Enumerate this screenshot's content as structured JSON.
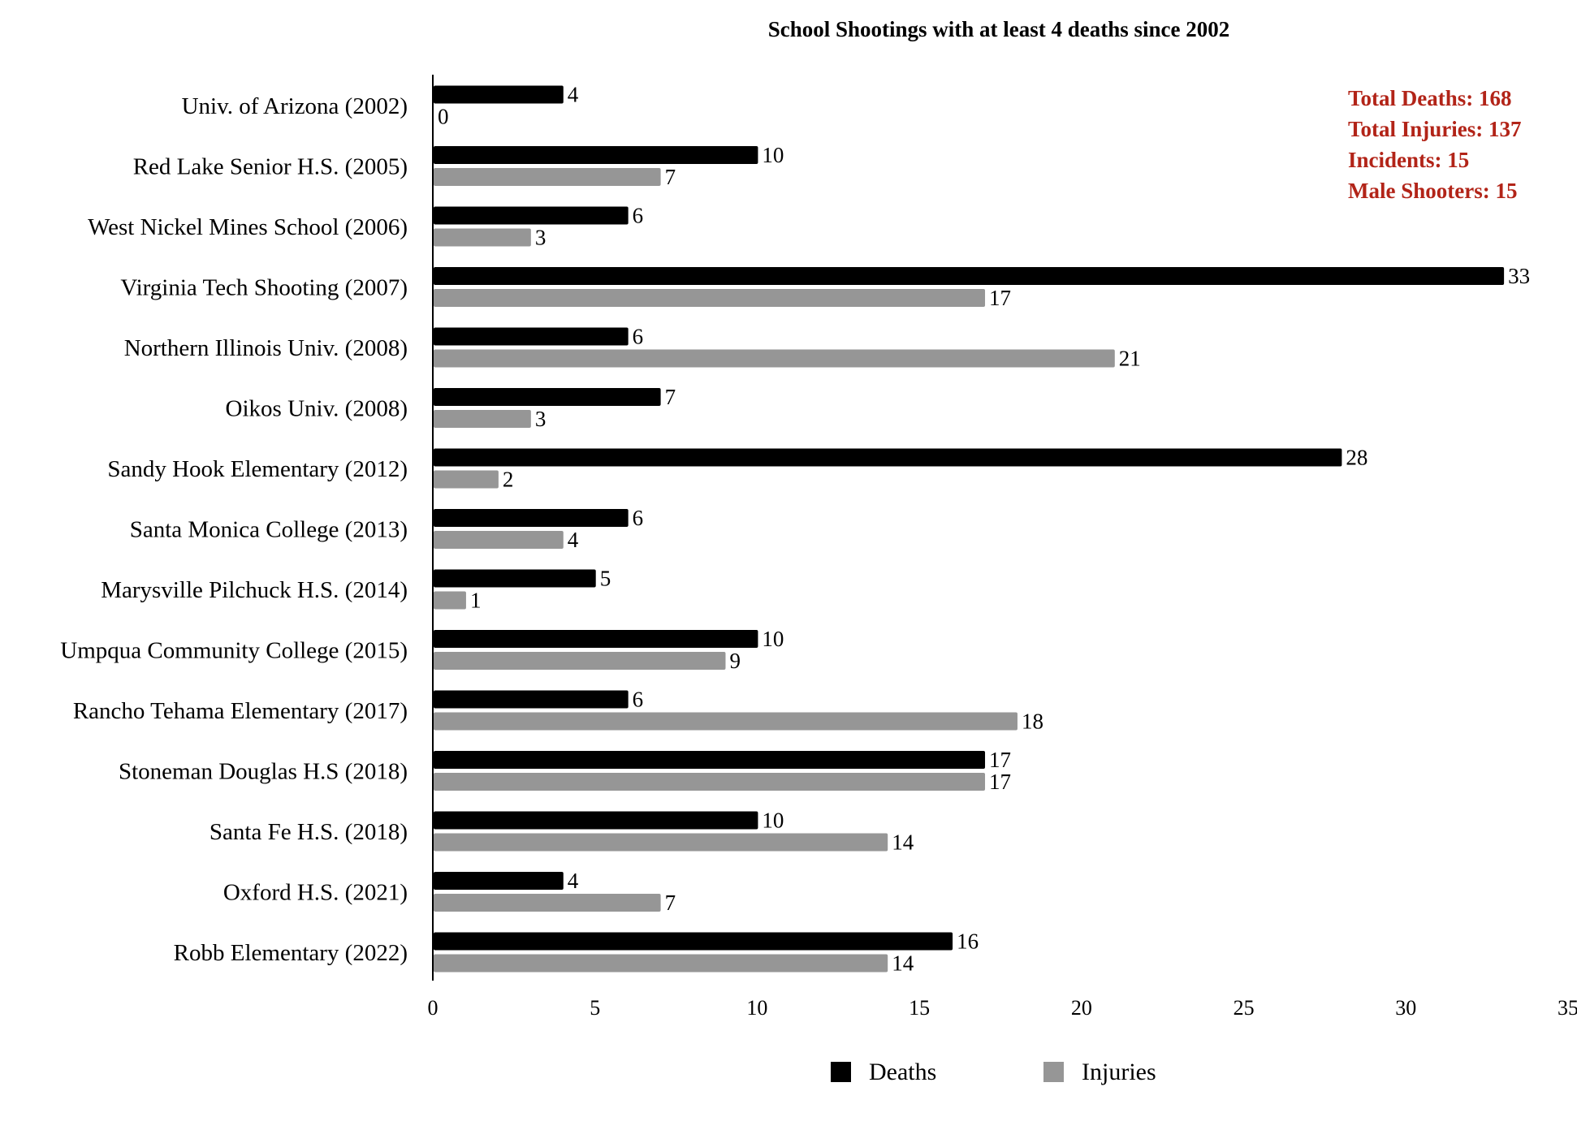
{
  "chart_data": {
    "type": "bar",
    "orientation": "horizontal",
    "title": "School Shootings with at least 4 deaths since 2002",
    "xlabel": "",
    "ylabel": "",
    "xlim": [
      0,
      35
    ],
    "x_ticks": [
      0,
      5,
      10,
      15,
      20,
      25,
      30,
      35
    ],
    "grid": false,
    "legend_position": "bottom",
    "categories": [
      "Univ. of Arizona (2002)",
      "Red Lake Senior H.S. (2005)",
      "West Nickel Mines School (2006)",
      "Virginia Tech Shooting (2007)",
      "Northern Illinois Univ. (2008)",
      "Oikos Univ. (2008)",
      "Sandy Hook Elementary (2012)",
      "Santa Monica College (2013)",
      "Marysville Pilchuck H.S. (2014)",
      "Umpqua Community College (2015)",
      "Rancho Tehama Elementary (2017)",
      "Stoneman Douglas H.S (2018)",
      "Santa Fe H.S. (2018)",
      "Oxford H.S. (2021)",
      "Robb Elementary (2022)"
    ],
    "series": [
      {
        "name": "Deaths",
        "color": "#000000",
        "values": [
          4,
          10,
          6,
          33,
          6,
          7,
          28,
          6,
          5,
          10,
          6,
          17,
          10,
          4,
          16
        ]
      },
      {
        "name": "Injuries",
        "color": "#969696",
        "values": [
          0,
          7,
          3,
          17,
          21,
          3,
          2,
          4,
          1,
          9,
          18,
          17,
          14,
          7,
          14
        ]
      }
    ],
    "annotations": {
      "color": "#b22418",
      "lines": [
        "Total Deaths: 168",
        "Total Injuries: 137",
        "Incidents: 15",
        "Male Shooters: 15"
      ]
    }
  }
}
